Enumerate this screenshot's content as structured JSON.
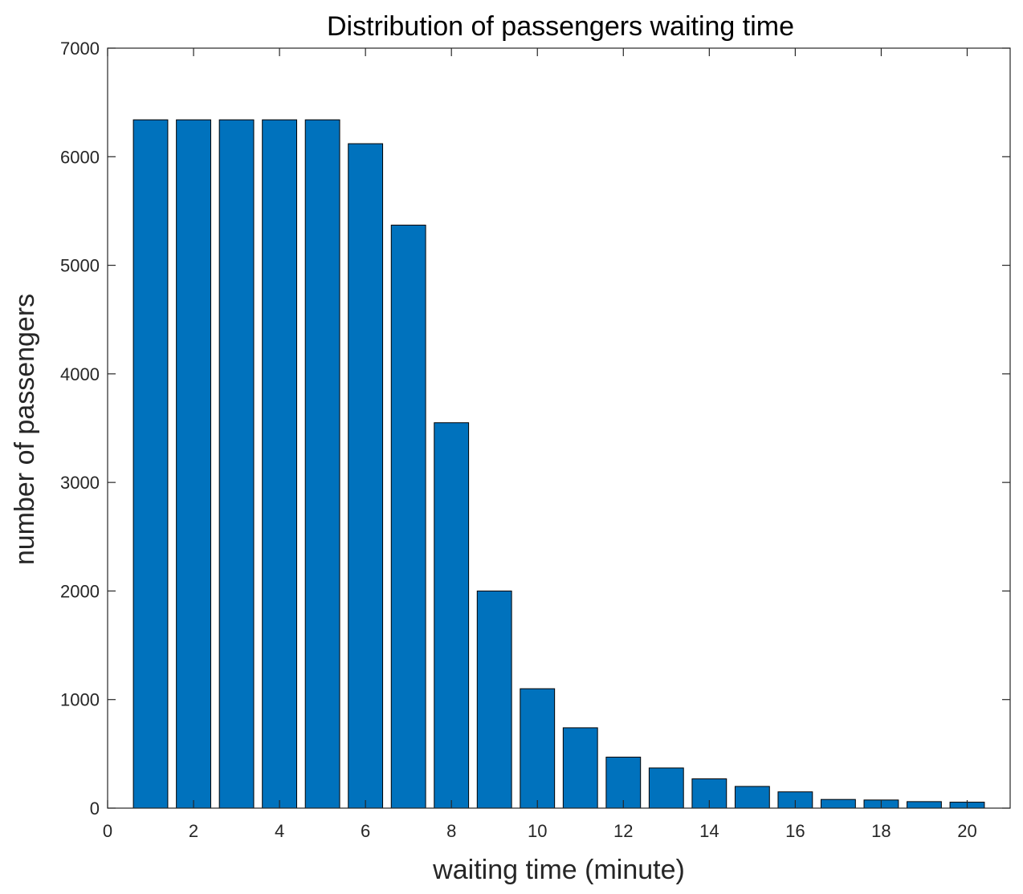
{
  "chart_data": {
    "type": "bar",
    "title": "Distribution of passengers waiting time",
    "xlabel": "waiting time (minute)",
    "ylabel": "number of passengers",
    "x": [
      1,
      2,
      3,
      4,
      5,
      6,
      7,
      8,
      9,
      10,
      11,
      12,
      13,
      14,
      15,
      16,
      17,
      18,
      19,
      20
    ],
    "values": [
      6340,
      6340,
      6340,
      6340,
      6340,
      6120,
      5370,
      3550,
      2000,
      1100,
      740,
      470,
      370,
      270,
      200,
      150,
      80,
      75,
      60,
      55
    ],
    "xlim": [
      0,
      21
    ],
    "ylim": [
      0,
      7000
    ],
    "xticks": [
      0,
      2,
      4,
      6,
      8,
      10,
      12,
      14,
      16,
      18,
      20
    ],
    "xtick_labels": [
      "0",
      "2",
      "4",
      "6",
      "8",
      "10",
      "12",
      "14",
      "16",
      "18",
      "20"
    ],
    "yticks": [
      0,
      1000,
      2000,
      3000,
      4000,
      5000,
      6000,
      7000
    ],
    "ytick_labels": [
      "0",
      "1000",
      "2000",
      "3000",
      "4000",
      "5000",
      "6000",
      "7000"
    ],
    "grid": false,
    "legend": "none",
    "bar_color": "#0072BD",
    "edge_color": "#000000"
  }
}
